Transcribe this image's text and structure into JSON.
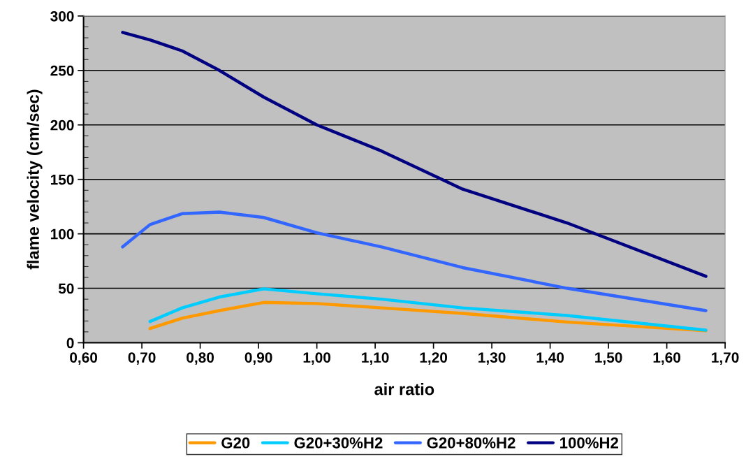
{
  "chart_data": {
    "type": "line",
    "xlabel": "air ratio",
    "ylabel": "flame velocity (cm/sec)",
    "x": [
      0.667,
      0.714,
      0.769,
      0.833,
      0.909,
      1.0,
      1.111,
      1.25,
      1.429,
      1.667
    ],
    "series": [
      {
        "name": "G20",
        "color": "#ff9900",
        "values": [
          null,
          13,
          22.5,
          29.5,
          37,
          36,
          32,
          27,
          19,
          11
        ]
      },
      {
        "name": "G20+30%H2",
        "color": "#00ccff",
        "values": [
          null,
          19.5,
          32,
          42,
          49.5,
          45,
          40,
          32,
          25,
          11.5
        ]
      },
      {
        "name": "G20+80%H2",
        "color": "#3366ff",
        "values": [
          88,
          108.5,
          118.5,
          120,
          115,
          101,
          88,
          69,
          50,
          29.5
        ]
      },
      {
        "name": "100%H2",
        "color": "#000080",
        "values": [
          285,
          278,
          268,
          250,
          225.5,
          200,
          176,
          141,
          110,
          61
        ]
      }
    ],
    "xlim": [
      0.6,
      1.7
    ],
    "xticks": [
      {
        "value": 0.6,
        "label": "0,60"
      },
      {
        "value": 0.7,
        "label": "0,70"
      },
      {
        "value": 0.8,
        "label": "0,80"
      },
      {
        "value": 0.9,
        "label": "0,90"
      },
      {
        "value": 1.0,
        "label": "1,00"
      },
      {
        "value": 1.1,
        "label": "1,10"
      },
      {
        "value": 1.2,
        "label": "1,20"
      },
      {
        "value": 1.3,
        "label": "1,30"
      },
      {
        "value": 1.4,
        "label": "1,40"
      },
      {
        "value": 1.5,
        "label": "1,50"
      },
      {
        "value": 1.6,
        "label": "1,60"
      },
      {
        "value": 1.7,
        "label": "1,70"
      }
    ],
    "ylim": [
      0,
      300
    ],
    "yticks": [
      0,
      50,
      100,
      150,
      200,
      250,
      300
    ],
    "grid": "y",
    "legend": "bottom",
    "marker": "none",
    "line_style": "solid"
  }
}
